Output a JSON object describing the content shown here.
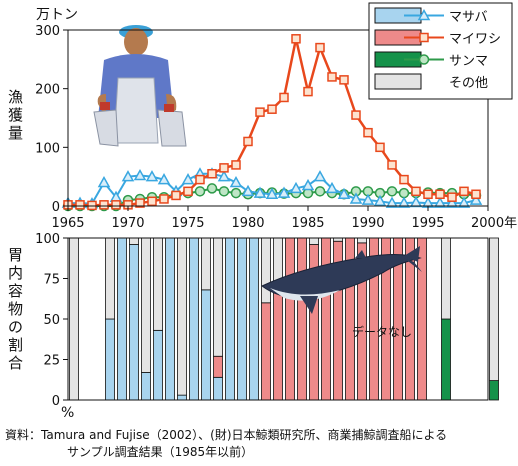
{
  "chart_data": [
    {
      "type": "line",
      "y_unit": "万トン",
      "ylabel": "漁獲量",
      "ylim": [
        0,
        300
      ],
      "yticks": [
        0,
        100,
        200,
        300
      ],
      "x_ticks": [
        1965,
        1970,
        1975,
        1980,
        1985,
        1990,
        1995,
        2000
      ],
      "x_end_label": "2000年",
      "xlim": [
        1965,
        2000
      ],
      "grid": false,
      "legend_position": "top-right",
      "colors": {
        "sardine": "#e8481c",
        "mackerel": "#39a7e0",
        "saury": "#2e9a4a"
      },
      "series": [
        {
          "name": "マイワシ",
          "key": "sardine",
          "marker": "square",
          "x": [
            1965,
            1966,
            1967,
            1968,
            1969,
            1970,
            1971,
            1972,
            1973,
            1974,
            1975,
            1976,
            1977,
            1978,
            1979,
            1980,
            1981,
            1982,
            1983,
            1984,
            1985,
            1986,
            1987,
            1988,
            1989,
            1990,
            1991,
            1992,
            1993,
            1994,
            1995,
            1996,
            1997,
            1998,
            1999
          ],
          "values": [
            2,
            2,
            1,
            2,
            2,
            2,
            5,
            8,
            12,
            18,
            25,
            45,
            55,
            65,
            70,
            110,
            160,
            165,
            185,
            285,
            195,
            270,
            220,
            215,
            155,
            125,
            100,
            70,
            45,
            25,
            20,
            20,
            15,
            25,
            20
          ]
        },
        {
          "name": "マサバ",
          "key": "mackerel",
          "marker": "triangle",
          "x": [
            1965,
            1966,
            1967,
            1968,
            1969,
            1970,
            1971,
            1972,
            1973,
            1974,
            1975,
            1976,
            1977,
            1978,
            1979,
            1980,
            1981,
            1982,
            1983,
            1984,
            1985,
            1986,
            1987,
            1988,
            1989,
            1990,
            1991,
            1992,
            1993,
            1994,
            1995,
            1996,
            1997,
            1998,
            1999
          ],
          "values": [
            5,
            5,
            4,
            40,
            15,
            50,
            52,
            50,
            45,
            25,
            45,
            55,
            55,
            50,
            40,
            25,
            22,
            20,
            22,
            30,
            35,
            50,
            30,
            20,
            12,
            10,
            8,
            5,
            5,
            6,
            5,
            5,
            5,
            5,
            10
          ]
        },
        {
          "name": "サンマ",
          "key": "saury",
          "marker": "circle",
          "x": [
            1965,
            1966,
            1967,
            1968,
            1969,
            1970,
            1971,
            1972,
            1973,
            1974,
            1975,
            1976,
            1977,
            1978,
            1979,
            1980,
            1981,
            1982,
            1983,
            1984,
            1985,
            1986,
            1987,
            1988,
            1989,
            1990,
            1991,
            1992,
            1993,
            1994,
            1995,
            1996,
            1997,
            1998,
            1999
          ],
          "values": [
            0,
            0,
            0,
            0,
            0,
            10,
            12,
            15,
            15,
            20,
            22,
            25,
            30,
            25,
            22,
            20,
            22,
            23,
            21,
            22,
            22,
            25,
            22,
            20,
            25,
            25,
            22,
            25,
            22,
            22,
            23,
            22,
            22,
            20,
            18
          ]
        }
      ]
    },
    {
      "type": "bar",
      "stacked": true,
      "ylabel": "胃内容物の割合",
      "y_unit": "%",
      "ylim": [
        0,
        100
      ],
      "yticks": [
        0,
        25,
        50,
        75,
        100
      ],
      "annotation": "データなし",
      "legend_entries": [
        "マサバ",
        "マイワシ",
        "サンマ",
        "その他"
      ],
      "colors": {
        "mackerel": "#a8d4ef",
        "sardine": "#ee8a8a",
        "saury": "#15924a",
        "other": "#e4e4e4"
      },
      "series_order": [
        "mackerel",
        "sardine",
        "saury",
        "other"
      ],
      "bars": [
        {
          "x": 1965,
          "mackerel": 0,
          "sardine": 0,
          "saury": 0,
          "other": 100
        },
        {
          "x": 1968,
          "mackerel": 50,
          "sardine": 0,
          "saury": 0,
          "other": 50
        },
        {
          "x": 1969,
          "mackerel": 100,
          "sardine": 0,
          "saury": 0,
          "other": 0
        },
        {
          "x": 1970,
          "mackerel": 96,
          "sardine": 0,
          "saury": 0,
          "other": 4
        },
        {
          "x": 1971,
          "mackerel": 17,
          "sardine": 0,
          "saury": 0,
          "other": 83
        },
        {
          "x": 1972,
          "mackerel": 43,
          "sardine": 0,
          "saury": 0,
          "other": 57
        },
        {
          "x": 1973,
          "mackerel": 100,
          "sardine": 0,
          "saury": 0,
          "other": 0
        },
        {
          "x": 1974,
          "mackerel": 3,
          "sardine": 0,
          "saury": 0,
          "other": 97
        },
        {
          "x": 1975,
          "mackerel": 100,
          "sardine": 0,
          "saury": 0,
          "other": 0
        },
        {
          "x": 1976,
          "mackerel": 68,
          "sardine": 0,
          "saury": 0,
          "other": 32
        },
        {
          "x": 1977,
          "mackerel": 14,
          "sardine": 13,
          "saury": 0,
          "other": 73
        },
        {
          "x": 1978,
          "mackerel": 100,
          "sardine": 0,
          "saury": 0,
          "other": 0
        },
        {
          "x": 1979,
          "mackerel": 100,
          "sardine": 0,
          "saury": 0,
          "other": 0
        },
        {
          "x": 1980,
          "mackerel": 100,
          "sardine": 0,
          "saury": 0,
          "other": 0
        },
        {
          "x": 1981,
          "mackerel": 0,
          "sardine": 60,
          "saury": 0,
          "other": 40
        },
        {
          "x": 1982,
          "mackerel": 0,
          "sardine": 66,
          "saury": 0,
          "other": 34
        },
        {
          "x": 1983,
          "mackerel": 0,
          "sardine": 100,
          "saury": 0,
          "other": 0
        },
        {
          "x": 1984,
          "mackerel": 0,
          "sardine": 100,
          "saury": 0,
          "other": 0
        },
        {
          "x": 1985,
          "mackerel": 0,
          "sardine": 96,
          "saury": 0,
          "other": 4
        },
        {
          "x": 1986,
          "mackerel": 0,
          "sardine": 100,
          "saury": 0,
          "other": 0
        },
        {
          "x": 1987,
          "mackerel": 0,
          "sardine": 98,
          "saury": 0,
          "other": 2
        },
        {
          "x": 1988,
          "mackerel": 0,
          "sardine": 100,
          "saury": 0,
          "other": 0
        },
        {
          "x": 1989,
          "mackerel": 0,
          "sardine": 97,
          "saury": 0,
          "other": 3
        },
        {
          "x": 1990,
          "mackerel": 0,
          "sardine": 100,
          "saury": 0,
          "other": 0
        },
        {
          "x": 1991,
          "mackerel": 0,
          "sardine": 100,
          "saury": 0,
          "other": 0
        },
        {
          "x": 1992,
          "mackerel": 0,
          "sardine": 100,
          "saury": 0,
          "other": 0
        },
        {
          "x": 1993,
          "mackerel": 0,
          "sardine": 100,
          "saury": 0,
          "other": 0
        },
        {
          "x": 1994,
          "mackerel": 0,
          "sardine": 100,
          "saury": 0,
          "other": 0
        },
        {
          "x": 1996,
          "mackerel": 0,
          "sardine": 0,
          "saury": 50,
          "other": 50
        },
        {
          "x": 2000,
          "mackerel": 0,
          "sardine": 0,
          "saury": 12,
          "other": 88
        }
      ]
    }
  ],
  "legend": {
    "items": [
      {
        "label": "マサバ",
        "key": "mackerel",
        "swatch": "#a8d4ef",
        "line": "#39a7e0",
        "marker": "triangle"
      },
      {
        "label": "マイワシ",
        "key": "sardine",
        "swatch": "#ee8a8a",
        "line": "#e8481c",
        "marker": "square"
      },
      {
        "label": "サンマ",
        "key": "saury",
        "swatch": "#15924a",
        "line": "#2e9a4a",
        "marker": "circle"
      },
      {
        "label": "その他",
        "key": "other",
        "swatch": "#e4e4e4",
        "line": null,
        "marker": null
      }
    ]
  },
  "source": {
    "line1": "資料：Tamura and Fujise（2002）、(財)日本鯨類研究所、商業捕鯨調査船による",
    "line2": "サンプル調査結果（1985年以前）"
  }
}
